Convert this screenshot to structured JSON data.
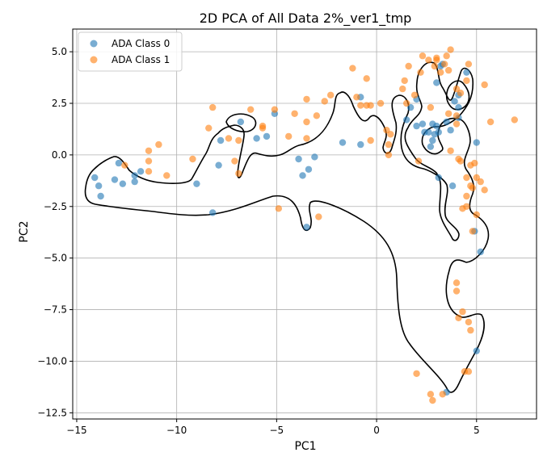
{
  "chart_data": {
    "type": "scatter",
    "title": "2D PCA of All Data 2%_ver1_tmp",
    "xlabel": "PC1",
    "ylabel": "PC2",
    "xlim": [
      -15.2,
      8.0
    ],
    "ylim": [
      -12.8,
      6.1
    ],
    "xticks": [
      -15,
      -10,
      -5,
      0,
      5
    ],
    "xtick_labels": [
      "−15",
      "−10",
      "−5",
      "0",
      "5"
    ],
    "yticks": [
      5.0,
      2.5,
      0.0,
      -2.5,
      -5.0,
      -7.5,
      -10.0,
      -12.5
    ],
    "ytick_labels": [
      "5.0",
      "2.5",
      "0.0",
      "−2.5",
      "−5.0",
      "−7.5",
      "−10.0",
      "−12.5"
    ],
    "grid": true,
    "legend_position": "top-left",
    "series": [
      {
        "name": "ADA Class 0",
        "color": "#1f77b4",
        "points": [
          [
            -14.1,
            -1.1
          ],
          [
            -13.9,
            -1.5
          ],
          [
            -13.8,
            -2.0
          ],
          [
            -13.1,
            -1.2
          ],
          [
            -12.9,
            -0.4
          ],
          [
            -12.7,
            -1.4
          ],
          [
            -12.1,
            -1.3
          ],
          [
            -12.1,
            -1.0
          ],
          [
            -11.8,
            -0.8
          ],
          [
            -9.0,
            -1.4
          ],
          [
            -8.2,
            -2.8
          ],
          [
            -7.9,
            -0.5
          ],
          [
            -7.8,
            0.7
          ],
          [
            -6.8,
            1.6
          ],
          [
            -6.0,
            0.8
          ],
          [
            -5.5,
            0.9
          ],
          [
            -5.1,
            2.0
          ],
          [
            -3.9,
            -0.2
          ],
          [
            -3.7,
            -1.0
          ],
          [
            -3.5,
            -3.5
          ],
          [
            -3.4,
            -0.7
          ],
          [
            -3.1,
            -0.1
          ],
          [
            -1.7,
            0.6
          ],
          [
            -0.8,
            2.8
          ],
          [
            -0.8,
            0.5
          ],
          [
            1.5,
            1.7
          ],
          [
            1.7,
            2.3
          ],
          [
            2.0,
            2.7
          ],
          [
            2.0,
            1.4
          ],
          [
            2.3,
            1.5
          ],
          [
            2.4,
            1.1
          ],
          [
            2.6,
            1.1
          ],
          [
            2.7,
            0.4
          ],
          [
            2.8,
            0.7
          ],
          [
            2.8,
            1.5
          ],
          [
            2.9,
            1.0
          ],
          [
            3.0,
            3.5
          ],
          [
            3.0,
            1.4
          ],
          [
            3.1,
            1.1
          ],
          [
            3.1,
            -1.1
          ],
          [
            3.2,
            4.3
          ],
          [
            3.3,
            4.4
          ],
          [
            3.5,
            1.6
          ],
          [
            3.7,
            1.2
          ],
          [
            3.8,
            -1.5
          ],
          [
            3.9,
            2.6
          ],
          [
            4.1,
            2.3
          ],
          [
            4.1,
            1.8
          ],
          [
            4.1,
            2.9
          ],
          [
            4.5,
            4.0
          ],
          [
            4.9,
            -3.7
          ],
          [
            5.0,
            0.6
          ],
          [
            5.0,
            -9.5
          ],
          [
            5.2,
            -4.7
          ],
          [
            3.5,
            -11.5
          ]
        ]
      },
      {
        "name": "ADA Class 1",
        "color": "#ff7f0e",
        "points": [
          [
            -12.6,
            -0.5
          ],
          [
            -11.4,
            0.2
          ],
          [
            -11.4,
            -0.3
          ],
          [
            -11.4,
            -0.8
          ],
          [
            -10.9,
            0.5
          ],
          [
            -10.5,
            -1.0
          ],
          [
            -9.2,
            -0.2
          ],
          [
            -8.4,
            1.3
          ],
          [
            -8.2,
            2.3
          ],
          [
            -7.4,
            0.8
          ],
          [
            -7.1,
            -0.3
          ],
          [
            -6.9,
            0.7
          ],
          [
            -6.9,
            -0.9
          ],
          [
            -6.3,
            2.2
          ],
          [
            -5.7,
            1.4
          ],
          [
            -5.7,
            1.3
          ],
          [
            -5.1,
            2.2
          ],
          [
            -4.9,
            -2.6
          ],
          [
            -4.4,
            0.9
          ],
          [
            -4.1,
            2.0
          ],
          [
            -3.5,
            2.7
          ],
          [
            -3.5,
            1.6
          ],
          [
            -3.5,
            0.8
          ],
          [
            -3.0,
            1.9
          ],
          [
            -2.9,
            -3.0
          ],
          [
            -2.6,
            2.6
          ],
          [
            -2.3,
            2.9
          ],
          [
            -1.2,
            4.2
          ],
          [
            -1.0,
            2.8
          ],
          [
            -0.8,
            2.4
          ],
          [
            -0.5,
            2.4
          ],
          [
            -0.5,
            3.7
          ],
          [
            -0.3,
            2.4
          ],
          [
            -0.3,
            0.7
          ],
          [
            0.2,
            2.5
          ],
          [
            0.5,
            1.2
          ],
          [
            0.6,
            0.5
          ],
          [
            0.6,
            0.0
          ],
          [
            0.7,
            1.0
          ],
          [
            1.3,
            3.2
          ],
          [
            1.4,
            3.6
          ],
          [
            1.5,
            2.5
          ],
          [
            1.6,
            4.3
          ],
          [
            1.9,
            2.9
          ],
          [
            2.0,
            -10.6
          ],
          [
            2.1,
            -0.3
          ],
          [
            2.2,
            4.0
          ],
          [
            2.3,
            4.8
          ],
          [
            2.6,
            4.6
          ],
          [
            2.7,
            2.3
          ],
          [
            2.7,
            -11.6
          ],
          [
            2.8,
            -11.9
          ],
          [
            2.9,
            4.3
          ],
          [
            3.0,
            4.6
          ],
          [
            3.0,
            4.7
          ],
          [
            3.2,
            4.0
          ],
          [
            3.4,
            4.4
          ],
          [
            3.5,
            4.8
          ],
          [
            3.6,
            4.1
          ],
          [
            3.6,
            2.0
          ],
          [
            3.7,
            5.1
          ],
          [
            3.7,
            0.2
          ],
          [
            4.0,
            3.2
          ],
          [
            4.0,
            1.9
          ],
          [
            4.0,
            1.5
          ],
          [
            4.0,
            -6.2
          ],
          [
            4.0,
            -6.6
          ],
          [
            4.1,
            -7.9
          ],
          [
            4.1,
            -0.2
          ],
          [
            4.2,
            -0.3
          ],
          [
            4.2,
            3.0
          ],
          [
            4.3,
            -2.6
          ],
          [
            4.3,
            -7.6
          ],
          [
            4.4,
            -10.5
          ],
          [
            4.5,
            -1.1
          ],
          [
            4.5,
            -2.0
          ],
          [
            4.5,
            -2.5
          ],
          [
            4.5,
            3.6
          ],
          [
            4.6,
            -10.5
          ],
          [
            4.6,
            4.4
          ],
          [
            4.6,
            -8.1
          ],
          [
            4.7,
            -0.5
          ],
          [
            4.7,
            -8.5
          ],
          [
            4.7,
            -1.5
          ],
          [
            4.8,
            -1.6
          ],
          [
            4.9,
            -0.4
          ],
          [
            5.0,
            -1.1
          ],
          [
            5.0,
            -2.9
          ],
          [
            5.2,
            -1.3
          ],
          [
            5.4,
            3.4
          ],
          [
            5.4,
            -1.7
          ],
          [
            5.7,
            1.6
          ],
          [
            6.9,
            1.7
          ],
          [
            3.3,
            -11.6
          ],
          [
            4.8,
            -3.7
          ]
        ]
      }
    ]
  }
}
